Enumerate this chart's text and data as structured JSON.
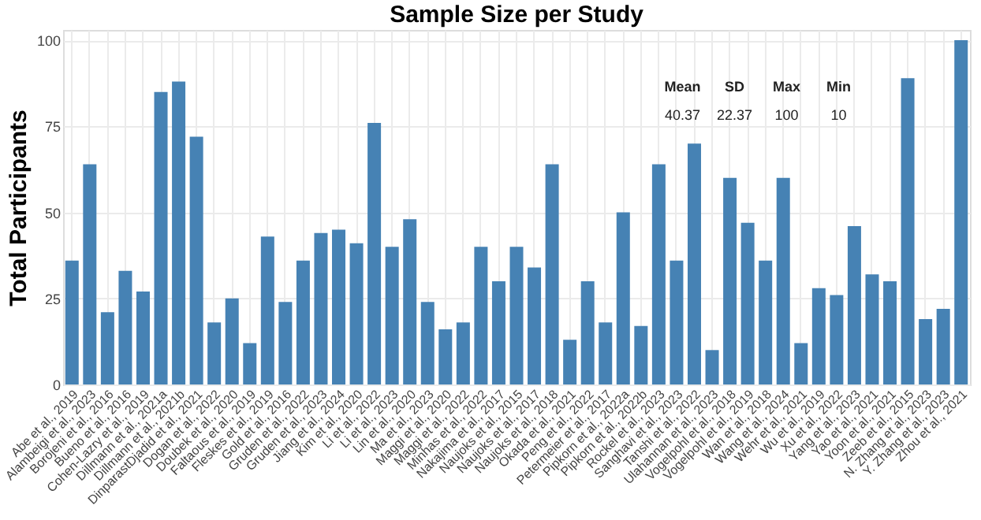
{
  "chart_data": {
    "type": "bar",
    "title": "Sample Size per Study",
    "ylabel": "Total Participants",
    "categories": [
      "Abe et al., 2019",
      "Alambeigi et al., 2023",
      "Borojeni et al., 2016",
      "Bueno et al., 2016",
      "Cohen-Lazry et al., 2019",
      "Dillmann et al., 2021a",
      "Dillmann et al., 2021b",
      "DinparastDjadid et al., 2021",
      "Dogan et al., 2022",
      "Doubek et al., 2020",
      "Faltaous et al., 2019",
      "Fleskes et al., 2019",
      "Gold et al., 2016",
      "Gruden et al., 2022",
      "Gruden et al., 2023",
      "Jiang et al., 2024",
      "Kim et al., 2020",
      "Li et al., 2022",
      "Li et al., 2023",
      "Lin et al., 2020",
      "Ma et al., 2023",
      "Maggi et al., 2020",
      "Maggi et al., 2022",
      "Minhas et al., 2022",
      "Nakajima et al., 2017",
      "Naujoks et al., 2015",
      "Naujoks et al., 2017",
      "Naujoks et al., 2018",
      "Okada et al., 2021",
      "Peng et al., 2022",
      "Petermeier et al., 2017",
      "Pipkorn et al., 2022a",
      "Pipkorn et al., 2022b",
      "Rockel et al., 2023",
      "Sanghavi et al., 2023",
      "Tanshi et al., 2022",
      "Ulahannan et al., 2023",
      "Vogelpohl et al., 2018",
      "Vogelpohl et al., 2019",
      "Wan et al., 2018",
      "Wang et al., 2024",
      "Wehr et al., 2021",
      "Wu et al., 2019",
      "Xu et al., 2022",
      "Yang et al., 2023",
      "Yao et al., 2021",
      "Yoon et al., 2021",
      "Zeeb et al., 2015",
      "N. Zhang et al., 2023",
      "Y. Zhang et al., 2023",
      "Zhou et al., 2021"
    ],
    "values": [
      36,
      64,
      21,
      33,
      27,
      85,
      88,
      72,
      18,
      25,
      12,
      43,
      24,
      36,
      44,
      45,
      41,
      76,
      40,
      48,
      24,
      16,
      18,
      40,
      30,
      40,
      34,
      64,
      13,
      30,
      18,
      50,
      17,
      64,
      36,
      70,
      10,
      60,
      47,
      36,
      60,
      12,
      28,
      26,
      46,
      32,
      30,
      89,
      19,
      22,
      100
    ],
    "color": "#4682b4",
    "ylim": [
      0,
      103
    ],
    "yticks": [
      0,
      25,
      50,
      75,
      100
    ],
    "grid": true,
    "annotations": [
      "Mean",
      "SD",
      "Max",
      "Min",
      "40.37",
      "22.37",
      "100",
      "10"
    ]
  }
}
